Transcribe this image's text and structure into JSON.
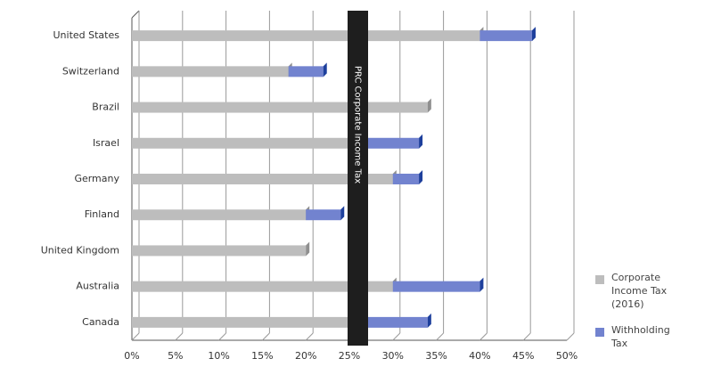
{
  "chart_data": {
    "type": "stacked-bar-horizontal",
    "categories": [
      "United States",
      "Switzerland",
      "Brazil",
      "Israel",
      "Germany",
      "Finland",
      "United Kingdom",
      "Australia",
      "Canada"
    ],
    "series": [
      {
        "name": "Corporate Income Tax (2016)",
        "color": "#bdbdbd",
        "values": [
          40,
          18,
          34,
          25,
          30,
          20,
          20,
          30,
          26
        ]
      },
      {
        "name": "Withholding Tax",
        "color": "#7283cf",
        "values": [
          6,
          4,
          0,
          8,
          3,
          4,
          0,
          10,
          8
        ]
      }
    ],
    "xlim": [
      0,
      50
    ],
    "xticks": [
      {
        "value": 0,
        "label": "0%"
      },
      {
        "value": 5,
        "label": "5%"
      },
      {
        "value": 10,
        "label": "10%"
      },
      {
        "value": 15,
        "label": "15%"
      },
      {
        "value": 20,
        "label": "20%"
      },
      {
        "value": 25,
        "label": "25%"
      },
      {
        "value": 30,
        "label": "30%"
      },
      {
        "value": 35,
        "label": "35%"
      },
      {
        "value": 40,
        "label": "40%"
      },
      {
        "value": 45,
        "label": "45%"
      },
      {
        "value": 50,
        "label": "50%"
      }
    ],
    "grid": true,
    "annotations": [
      {
        "text": "PRC Corporate Income Tax",
        "value": 25
      }
    ]
  }
}
